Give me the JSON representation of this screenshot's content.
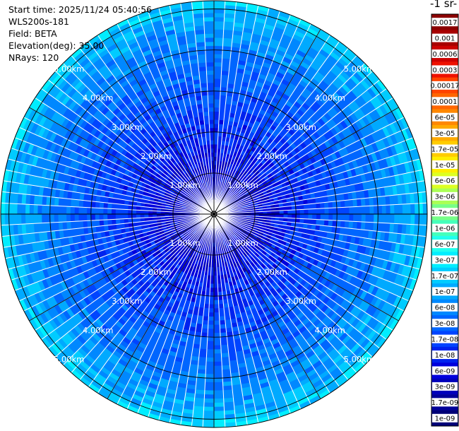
{
  "header": {
    "start_time": "Start time: 2025/11/24 05:40:56",
    "instrument": "WLS200s-181",
    "field": "Field: BETA",
    "elevation": "Elevation(deg): 35.00",
    "nrays": "NRays: 120"
  },
  "colorbar": {
    "title": "-1 sr-",
    "labels": [
      "0.0017",
      "0.001",
      "0.0006",
      "0.0003",
      "0.00017",
      "0.0001",
      "6e-05",
      "3e-05",
      "1.7e-05",
      "1e-05",
      "6e-06",
      "3e-06",
      "1.7e-06",
      "1e-06",
      "6e-07",
      "3e-07",
      "1.7e-07",
      "1e-07",
      "6e-08",
      "3e-08",
      "1.7e-08",
      "1e-08",
      "6e-09",
      "3e-09",
      "1.7e-09",
      "1e-09"
    ],
    "colors": [
      "#8b0000",
      "#a80000",
      "#cc0000",
      "#ee1100",
      "#ff4400",
      "#ff6600",
      "#ff8800",
      "#ffaa00",
      "#ffcc00",
      "#ffee00",
      "#ddff22",
      "#aaff55",
      "#77ff88",
      "#44ffbb",
      "#22ffee",
      "#00eeff",
      "#00ccff",
      "#00aaff",
      "#0088ff",
      "#0066ff",
      "#0044ff",
      "#0022ee",
      "#0000dd",
      "#0000bb",
      "#000099",
      "#000077"
    ]
  },
  "chart_data": {
    "type": "heatmap",
    "projection": "polar-ppi",
    "field": "BETA",
    "elevation_deg": 35.0,
    "n_rays": 120,
    "range_unit": "km",
    "max_range_km": 5.2,
    "range_rings": [
      {
        "label": "1.00km",
        "km": 1.0
      },
      {
        "label": "2.00km",
        "km": 2.0
      },
      {
        "label": "3.00km",
        "km": 3.0
      },
      {
        "label": "4.00km",
        "km": 4.0
      },
      {
        "label": "5.00km",
        "km": 5.0
      }
    ],
    "ring_label_positions": [
      "upper-left",
      "upper-right",
      "lower-left",
      "lower-right"
    ],
    "range_profile": [
      {
        "km": 0.0,
        "beta": 5e-09
      },
      {
        "km": 1.0,
        "beta": 6e-09
      },
      {
        "km": 2.0,
        "beta": 1.5e-08
      },
      {
        "km": 3.0,
        "beta": 3e-08
      },
      {
        "km": 4.0,
        "beta": 6e-08
      },
      {
        "km": 4.5,
        "beta": 1e-07
      },
      {
        "km": 5.0,
        "beta": 1.7e-07
      },
      {
        "km": 5.2,
        "beta": 3e-07
      }
    ],
    "color_range": [
      1e-09,
      0.0017
    ],
    "scale": "log"
  }
}
